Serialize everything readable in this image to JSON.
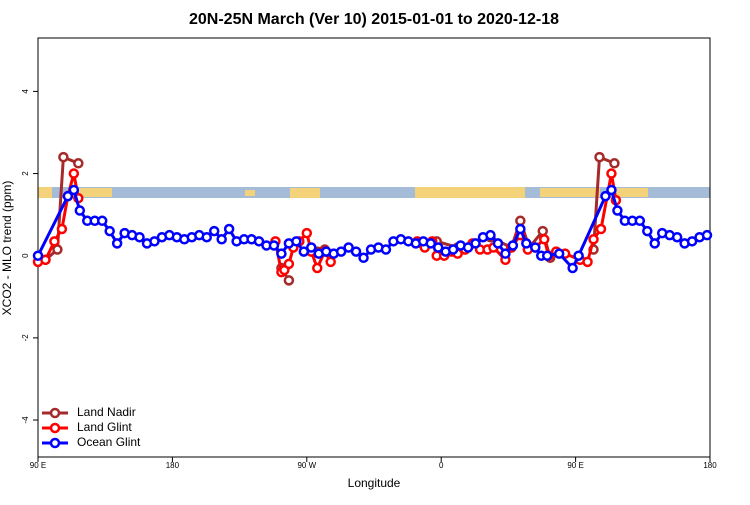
{
  "chart_data": {
    "type": "line",
    "title": "20N-25N March (Ver 10)   2015-01-01 to 2020-12-18",
    "x_label": "Longitude",
    "y_label": "XCO2 - MLO trend (ppm)",
    "xlim": [
      90,
      540
    ],
    "ylim": [
      -4.9,
      5.3
    ],
    "xticks": [
      {
        "value": 90,
        "label": "90 E"
      },
      180,
      {
        "value": 270,
        "label": "90 W"
      },
      {
        "value": 360,
        "label": "0"
      },
      {
        "value": 450,
        "label": "90 E"
      },
      {
        "value": 540,
        "label": "180"
      }
    ],
    "yticks": [
      -4,
      -2,
      0,
      2,
      4
    ],
    "legend": "bottom-left",
    "series": [
      {
        "name": "Land Nadir",
        "color": "#a52a2a",
        "x": [
          95,
          103,
          107,
          117,
          180,
          253,
          258,
          268,
          277,
          282,
          315,
          347,
          357,
          371,
          393,
          407,
          413,
          419,
          428,
          433,
          447,
          462,
          466,
          476
        ],
        "values": [
          -0.1,
          0.15,
          2.4,
          2.25,
          null,
          -0.3,
          -0.6,
          null,
          0.1,
          0.15,
          null,
          0.3,
          0.35,
          0.2,
          0.45,
          0.2,
          0.85,
          0.2,
          0.6,
          -0.05,
          null,
          0.15,
          2.4,
          2.25
        ]
      },
      {
        "name": "Land Glint",
        "color": "#ff0000",
        "x": [
          90,
          95,
          101,
          106,
          110,
          114,
          117,
          180,
          249,
          253,
          255,
          258,
          261,
          265,
          270,
          273,
          277,
          282,
          286,
          315,
          344,
          349,
          354,
          357,
          362,
          367,
          371,
          376,
          381,
          386,
          391,
          395,
          403,
          407,
          413,
          418,
          423,
          429,
          432,
          437,
          443,
          453,
          458,
          462,
          467,
          474,
          477
        ],
        "values": [
          -0.15,
          -0.1,
          0.35,
          0.65,
          1.45,
          2.0,
          1.4,
          null,
          0.35,
          -0.4,
          -0.35,
          -0.2,
          0.2,
          0.35,
          0.55,
          0.1,
          -0.3,
          0.1,
          -0.15,
          null,
          0.35,
          0.2,
          0.35,
          0.0,
          0.0,
          0.1,
          0.05,
          0.15,
          0.3,
          0.15,
          0.15,
          0.2,
          -0.1,
          0.2,
          0.5,
          0.15,
          0.2,
          0.4,
          0.0,
          0.1,
          0.05,
          -0.1,
          -0.15,
          0.4,
          0.65,
          2.0,
          1.35
        ]
      },
      {
        "name": "Ocean Glint",
        "color": "#0000ff",
        "x": [
          90,
          110,
          114,
          118,
          123,
          128,
          133,
          138,
          143,
          148,
          153,
          158,
          163,
          168,
          173,
          178,
          183,
          188,
          193,
          198,
          203,
          208,
          213,
          218,
          223,
          228,
          233,
          238,
          243,
          248,
          253,
          258,
          263,
          268,
          273,
          278,
          283,
          288,
          293,
          298,
          303,
          308,
          313,
          318,
          323,
          328,
          333,
          338,
          343,
          348,
          353,
          358,
          363,
          368,
          373,
          378,
          383,
          388,
          393,
          398,
          403,
          408,
          413,
          417,
          423,
          427,
          431,
          439,
          448,
          452,
          470,
          474,
          478,
          483,
          488,
          493,
          498,
          503,
          508,
          513,
          518,
          523,
          528,
          533,
          538
        ],
        "values": [
          0,
          1.45,
          1.6,
          1.1,
          0.85,
          0.85,
          0.85,
          0.6,
          0.3,
          0.55,
          0.5,
          0.45,
          0.3,
          0.35,
          0.45,
          0.5,
          0.45,
          0.4,
          0.45,
          0.5,
          0.45,
          0.6,
          0.4,
          0.65,
          0.35,
          0.4,
          0.4,
          0.35,
          0.25,
          0.25,
          0.05,
          0.3,
          0.35,
          0.1,
          0.2,
          0.05,
          0.1,
          0.05,
          0.1,
          0.2,
          0.1,
          -0.05,
          0.15,
          0.2,
          0.15,
          0.35,
          0.4,
          0.35,
          0.3,
          0.35,
          0.3,
          0.2,
          0.1,
          0.15,
          0.25,
          0.2,
          0.3,
          0.45,
          0.5,
          0.3,
          0.05,
          0.25,
          0.65,
          0.3,
          0.2,
          0.0,
          0.0,
          0.05,
          -0.3,
          0.0,
          1.45,
          1.6,
          1.1,
          0.85,
          0.85,
          0.85,
          0.6,
          0.3,
          0.55,
          0.5,
          0.45,
          0.3,
          0.35,
          0.45,
          0.5
        ]
      }
    ]
  }
}
